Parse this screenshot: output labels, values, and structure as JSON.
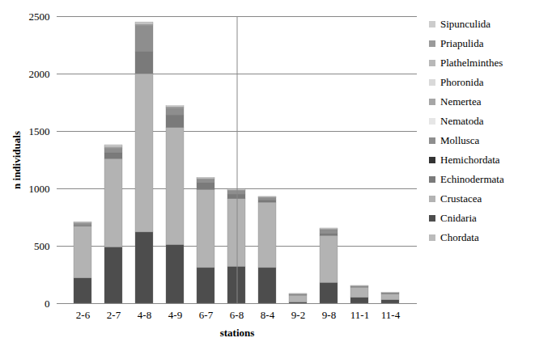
{
  "chart_data": {
    "type": "bar",
    "stacked": true,
    "grid": true,
    "legend": "right",
    "x_label": "stations",
    "y_label": "n individuals",
    "categories": [
      "2-6",
      "2-7",
      "4-8",
      "4-9",
      "6-7",
      "6-8",
      "8-4",
      "9-2",
      "9-8",
      "11-1",
      "11-4"
    ],
    "ylim": [
      0,
      2500
    ],
    "yticks": [
      0,
      500,
      1000,
      1500,
      2000,
      2500
    ],
    "series": [
      {
        "name": "Chordata",
        "color": "#bbbbbb",
        "values": [
          0,
          0,
          0,
          0,
          0,
          0,
          0,
          0,
          0,
          0,
          0
        ]
      },
      {
        "name": "Cnidaria",
        "color": "#4d4d4d",
        "values": [
          220,
          490,
          620,
          510,
          310,
          320,
          310,
          10,
          180,
          50,
          30
        ]
      },
      {
        "name": "Crustacea",
        "color": "#b3b3b3",
        "values": [
          450,
          770,
          1380,
          1020,
          680,
          590,
          570,
          60,
          410,
          90,
          50
        ]
      },
      {
        "name": "Echinodermata",
        "color": "#7a7a7a",
        "values": [
          10,
          50,
          190,
          110,
          60,
          40,
          20,
          5,
          20,
          5,
          5
        ]
      },
      {
        "name": "Hemichordata",
        "color": "#333333",
        "values": [
          0,
          0,
          0,
          0,
          0,
          0,
          0,
          0,
          0,
          0,
          0
        ]
      },
      {
        "name": "Mollusca",
        "color": "#8e8e8e",
        "values": [
          15,
          40,
          230,
          60,
          30,
          30,
          20,
          5,
          30,
          5,
          5
        ]
      },
      {
        "name": "Nematoda",
        "color": "#e6e6e6",
        "values": [
          0,
          0,
          0,
          0,
          0,
          0,
          0,
          0,
          0,
          0,
          0
        ]
      },
      {
        "name": "Nemertea",
        "color": "#a6a6a6",
        "values": [
          5,
          10,
          10,
          10,
          5,
          5,
          5,
          0,
          5,
          0,
          0
        ]
      },
      {
        "name": "Phoronida",
        "color": "#d9d9d9",
        "values": [
          0,
          0,
          0,
          0,
          0,
          0,
          0,
          0,
          0,
          0,
          0
        ]
      },
      {
        "name": "Plathelminthes",
        "color": "#b8b8b8",
        "values": [
          0,
          0,
          0,
          0,
          0,
          0,
          0,
          0,
          0,
          0,
          0
        ]
      },
      {
        "name": "Priapulida",
        "color": "#9a9a9a",
        "values": [
          0,
          0,
          0,
          0,
          0,
          0,
          0,
          0,
          0,
          0,
          0
        ]
      },
      {
        "name": "Sipunculida",
        "color": "#cccccc",
        "values": [
          10,
          20,
          20,
          10,
          10,
          10,
          5,
          5,
          10,
          5,
          5
        ]
      }
    ]
  }
}
